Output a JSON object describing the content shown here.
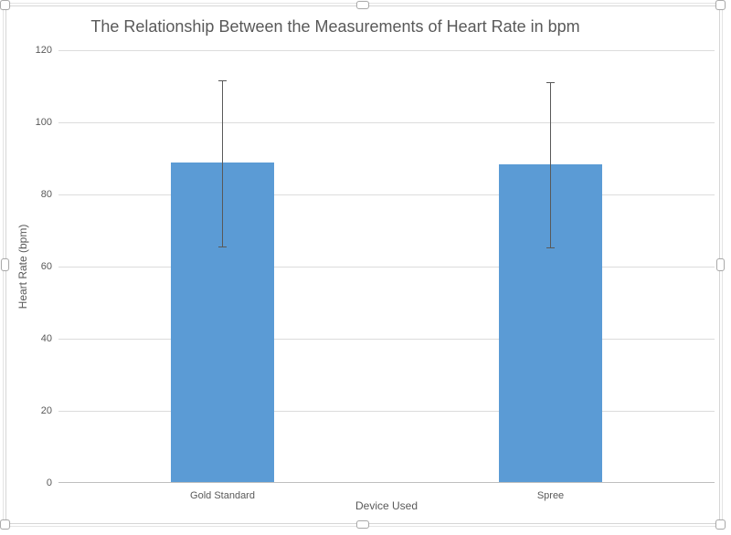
{
  "chart": {
    "selected": true,
    "selection_handle_count": 8
  },
  "chart_data": {
    "type": "bar",
    "title": "The Relationship Between the Measurements of Heart Rate in bpm",
    "categories": [
      "Gold Standard",
      "Spree"
    ],
    "values": [
      88.9,
      88.4
    ],
    "error_bars": {
      "upper": [
        111.7,
        111.1
      ],
      "lower": [
        65.6,
        65.3
      ]
    },
    "xlabel": "Device Used",
    "ylabel": "Heart Rate (bpm)",
    "ylim": [
      0,
      120
    ],
    "yticks": [
      0,
      20,
      40,
      60,
      80,
      100,
      120
    ],
    "grid": "horizontal",
    "legend": false,
    "colors": {
      "bar": "#5B9BD5",
      "gridline": "#dcdcdc",
      "axis_line": "#bfbfbf",
      "error_bar": "#595959",
      "text": "#595959"
    }
  }
}
